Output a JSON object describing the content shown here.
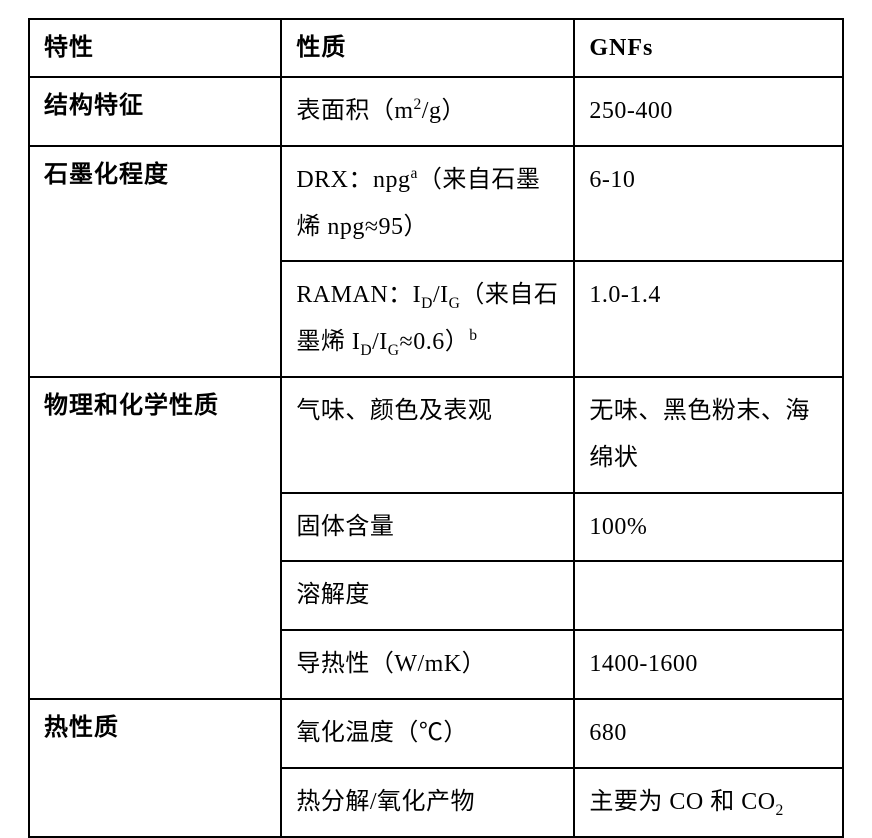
{
  "table": {
    "border_color": "#000000",
    "background_color": "#ffffff",
    "columns": [
      {
        "key": "c0",
        "width_pct": 31
      },
      {
        "key": "c1",
        "width_pct": 36
      },
      {
        "key": "c2",
        "width_pct": 33
      }
    ],
    "header": {
      "c0": "特性",
      "c1": "性质",
      "c2": "GNFs"
    },
    "sections": [
      {
        "name": "结构特征",
        "rows": [
          {
            "prop_html": "表面积（m<sup class='s'>2</sup>/g）",
            "value_html": "250-400"
          }
        ]
      },
      {
        "name": "石墨化程度",
        "rows": [
          {
            "prop_html": "DRX：npg<sup class='s'>a</sup>（来自石墨烯 npg≈95）",
            "value_html": "6-10"
          },
          {
            "prop_html": "RAMAN：I<sub class='s'>D</sub>/I<sub class='s'>G</sub>（来自石墨烯 I<sub class='s'>D</sub>/I<sub class='s'>G</sub>≈0.6）<sup class='s'>b</sup>",
            "value_html": "1.0-1.4"
          }
        ]
      },
      {
        "name": "物理和化学性质",
        "rows": [
          {
            "prop_html": "气味、颜色及表观",
            "value_html": "无味、黑色粉末、海绵状"
          },
          {
            "prop_html": "固体含量",
            "value_html": "100%"
          },
          {
            "prop_html": "溶解度",
            "value_html": ""
          },
          {
            "prop_html": "导热性（W/mK）",
            "value_html": "1400-1600"
          }
        ]
      },
      {
        "name": "热性质",
        "rows": [
          {
            "prop_html": "氧化温度（℃）",
            "value_html": "680"
          },
          {
            "prop_html": "热分解/氧化产物",
            "value_html": "主要为 CO 和 CO<sub class='s'>2</sub>"
          }
        ]
      }
    ]
  },
  "style": {
    "heading_font": "SimHei",
    "body_font": "SimSun",
    "roman_font": "Times New Roman",
    "heading_fontsize_pt": 18,
    "body_fontsize_pt": 18,
    "line_height": 1.95,
    "text_color": "#000000"
  }
}
